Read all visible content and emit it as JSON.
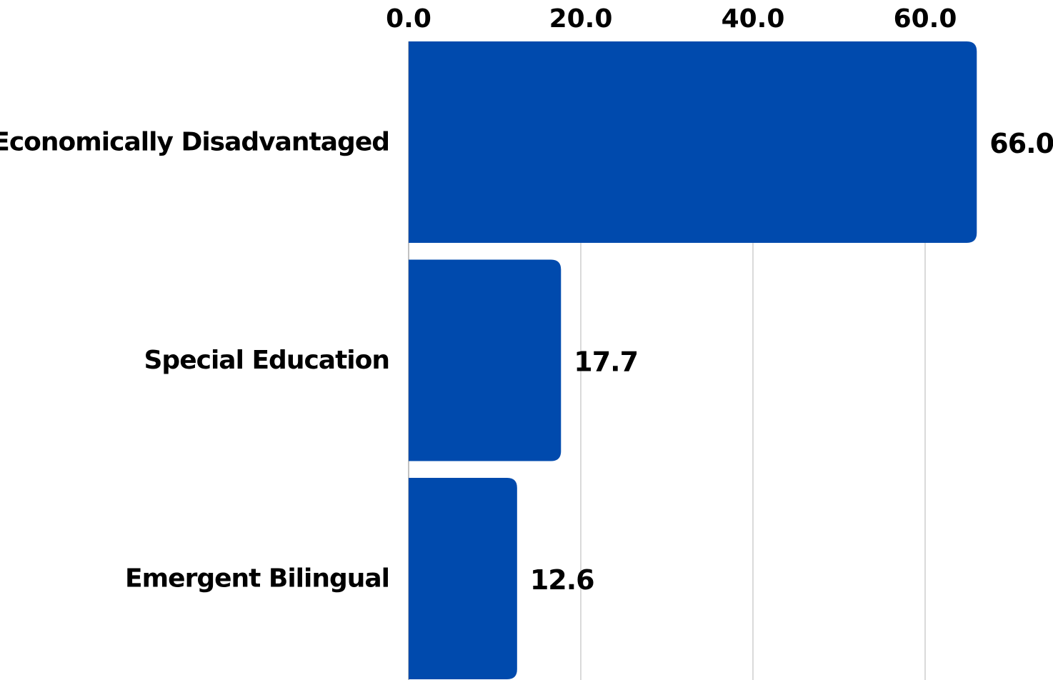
{
  "chart_data": {
    "type": "bar",
    "orientation": "horizontal",
    "categories": [
      "Economically Disadvantaged",
      "Special Education",
      "Emergent Bilingual"
    ],
    "values": [
      66.0,
      17.7,
      12.6
    ],
    "value_labels": [
      "66.0",
      "17.7",
      "12.6"
    ],
    "x_ticks": [
      0,
      20,
      40,
      60
    ],
    "x_tick_labels": [
      "0.0",
      "20.0",
      "40.0",
      "60.0"
    ],
    "xlim": [
      0,
      74.6
    ],
    "axis_position": "top",
    "grid": true,
    "legend": "none",
    "colors": {
      "bar": "#004AAD",
      "grid": "#c0c0c0",
      "text": "#000000"
    }
  }
}
